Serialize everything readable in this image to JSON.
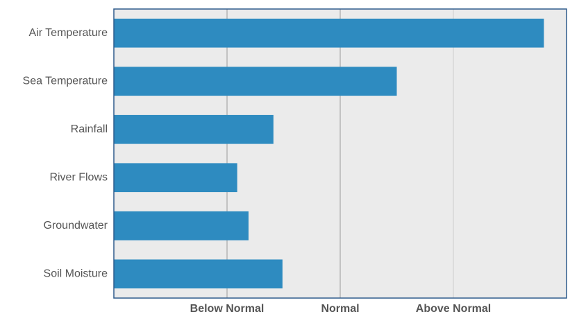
{
  "chart_data": {
    "type": "bar",
    "orientation": "horizontal",
    "categories": [
      "Air Temperature",
      "Sea Temperature",
      "Rainfall",
      "River Flows",
      "Groundwater",
      "Soil Moisture"
    ],
    "values": [
      3.8,
      2.5,
      1.41,
      1.09,
      1.19,
      1.49
    ],
    "xlim": [
      0,
      4
    ],
    "x_ticks": [
      {
        "value": 1,
        "label": "Below Normal"
      },
      {
        "value": 2,
        "label": "Normal"
      },
      {
        "value": 3,
        "label": "Above Normal"
      }
    ],
    "title": "",
    "xlabel": "",
    "ylabel": "",
    "grid": true,
    "legend": "none",
    "colors": {
      "bar": "#2e8bc0",
      "plot_background": "#ebebeb",
      "frame": "#2f5b8c",
      "grid_major": "#999999",
      "grid_minor": "#cccccc"
    }
  }
}
